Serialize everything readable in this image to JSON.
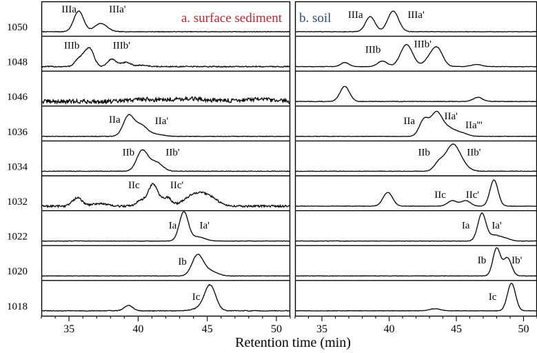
{
  "chart_data": {
    "type": "line",
    "xlabel": "Retention time (min)",
    "row_labels": [
      "1050",
      "1048",
      "1046",
      "1036",
      "1034",
      "1032",
      "1022",
      "1020",
      "1018"
    ],
    "panels": [
      {
        "id": "a",
        "title": "a. surface sediment",
        "title_color": "#c0262d",
        "xlim": [
          33,
          51
        ],
        "xticks": [
          35,
          40,
          45,
          50
        ],
        "traces": [
          {
            "row": "1050",
            "peaks": [
              [
                35.7,
                30,
                0.35
              ],
              [
                37.3,
                12,
                0.45
              ]
            ],
            "noise": 0.4,
            "labels": [
              {
                "text": "IIIa",
                "x": 35.0,
                "h": 28
              },
              {
                "text": "IIIa'",
                "x": 38.5,
                "h": 28
              }
            ]
          },
          {
            "row": "1048",
            "peaks": [
              [
                35.6,
                8,
                0.25
              ],
              [
                36.0,
                10,
                0.25
              ],
              [
                36.5,
                26,
                0.3
              ],
              [
                38.1,
                11,
                0.3
              ],
              [
                39.1,
                6,
                0.35
              ],
              [
                40.3,
                2,
                0.4
              ]
            ],
            "noise": 0.8,
            "labels": [
              {
                "text": "IIIb",
                "x": 35.2,
                "h": 26
              },
              {
                "text": "IIIb'",
                "x": 38.8,
                "h": 26
              }
            ]
          },
          {
            "row": "1046",
            "peaks": [
              [
                40.2,
                3,
                0.8
              ],
              [
                43.5,
                4,
                1.5
              ],
              [
                48.5,
                3,
                1.2
              ]
            ],
            "noise": 3.0,
            "labels": []
          },
          {
            "row": "1036",
            "peaks": [
              [
                39.3,
                29,
                0.38
              ],
              [
                40.2,
                16,
                0.45
              ],
              [
                41.3,
                3,
                0.5
              ]
            ],
            "noise": 0.4,
            "labels": [
              {
                "text": "IIa",
                "x": 38.3,
                "h": 20
              },
              {
                "text": "IIa'",
                "x": 41.7,
                "h": 18
              }
            ]
          },
          {
            "row": "1034",
            "peaks": [
              [
                40.3,
                30,
                0.4
              ],
              [
                41.3,
                13,
                0.45
              ]
            ],
            "noise": 0.4,
            "labels": [
              {
                "text": "IIb",
                "x": 39.3,
                "h": 23
              },
              {
                "text": "IIb'",
                "x": 42.5,
                "h": 23
              }
            ]
          },
          {
            "row": "1032",
            "peaks": [
              [
                35.6,
                12,
                0.35
              ],
              [
                37.2,
                4,
                0.5
              ],
              [
                40.2,
                8,
                0.35
              ],
              [
                41.1,
                32,
                0.35
              ],
              [
                42.1,
                12,
                0.3
              ],
              [
                43.9,
                11,
                0.7
              ],
              [
                44.7,
                11,
                0.7
              ],
              [
                45.4,
                5,
                0.6
              ]
            ],
            "noise": 1.5,
            "labels": [
              {
                "text": "IIc",
                "x": 39.7,
                "h": 26
              },
              {
                "text": "IIc'",
                "x": 42.8,
                "h": 26
              }
            ]
          },
          {
            "row": "1022",
            "peaks": [
              [
                43.3,
                42,
                0.32
              ],
              [
                44.3,
                6,
                0.5
              ]
            ],
            "noise": 0.3,
            "labels": [
              {
                "text": "Ia",
                "x": 42.5,
                "h": 18
              },
              {
                "text": "Ia'",
                "x": 44.8,
                "h": 18
              }
            ]
          },
          {
            "row": "1020",
            "peaks": [
              [
                44.3,
                30,
                0.4
              ],
              [
                45.2,
                7,
                0.5
              ]
            ],
            "noise": 0.3,
            "labels": [
              {
                "text": "Ib",
                "x": 43.2,
                "h": 16
              }
            ]
          },
          {
            "row": "1018",
            "peaks": [
              [
                39.3,
                8,
                0.3
              ],
              [
                44.4,
                3,
                0.5
              ],
              [
                45.2,
                37,
                0.4
              ]
            ],
            "noise": 0.5,
            "labels": [
              {
                "text": "Ic",
                "x": 44.2,
                "h": 16
              }
            ]
          }
        ]
      },
      {
        "id": "b",
        "title": "b. soil",
        "title_color": "#2b4a8c",
        "xlim": [
          33,
          51
        ],
        "xticks": [
          35,
          40,
          45,
          50
        ],
        "traces": [
          {
            "row": "1050",
            "peaks": [
              [
                38.6,
                22,
                0.35
              ],
              [
                40.3,
                30,
                0.4
              ]
            ],
            "noise": 0.3,
            "labels": [
              {
                "text": "IIIa",
                "x": 37.5,
                "h": 20
              },
              {
                "text": "IIIa'",
                "x": 42.0,
                "h": 20
              }
            ]
          },
          {
            "row": "1048",
            "peaks": [
              [
                36.7,
                6,
                0.3
              ],
              [
                39.5,
                8,
                0.35
              ],
              [
                41.3,
                32,
                0.45
              ],
              [
                43.0,
                10,
                0.4
              ],
              [
                43.6,
                25,
                0.4
              ],
              [
                46.5,
                3,
                0.4
              ]
            ],
            "noise": 0.3,
            "labels": [
              {
                "text": "IIIb",
                "x": 38.8,
                "h": 20
              },
              {
                "text": "IIIb'",
                "x": 42.5,
                "h": 28
              }
            ]
          },
          {
            "row": "1046",
            "peaks": [
              [
                36.7,
                22,
                0.35
              ],
              [
                46.6,
                6,
                0.35
              ]
            ],
            "noise": 0.4,
            "labels": []
          },
          {
            "row": "1036",
            "peaks": [
              [
                42.6,
                24,
                0.35
              ],
              [
                43.5,
                32,
                0.4
              ],
              [
                44.3,
                12,
                0.5
              ],
              [
                45.3,
                5,
                0.5
              ]
            ],
            "noise": 0.3,
            "labels": [
              {
                "text": "IIa",
                "x": 41.5,
                "h": 18
              },
              {
                "text": "IIa'",
                "x": 44.6,
                "h": 25
              },
              {
                "text": "IIa'''",
                "x": 46.3,
                "h": 12
              }
            ]
          },
          {
            "row": "1034",
            "peaks": [
              [
                43.7,
                12,
                0.35
              ],
              [
                44.7,
                36,
                0.5
              ],
              [
                45.4,
                8,
                0.5
              ]
            ],
            "noise": 0.3,
            "labels": [
              {
                "text": "IIb",
                "x": 42.6,
                "h": 23
              },
              {
                "text": "IIb'",
                "x": 46.3,
                "h": 23
              }
            ]
          },
          {
            "row": "1032",
            "peaks": [
              [
                39.9,
                20,
                0.35
              ],
              [
                44.7,
                8,
                0.35
              ],
              [
                45.7,
                8,
                0.35
              ],
              [
                47.8,
                38,
                0.3
              ]
            ],
            "noise": 0.3,
            "labels": [
              {
                "text": "IIc",
                "x": 43.8,
                "h": 12
              },
              {
                "text": "IIc'",
                "x": 46.2,
                "h": 12
              }
            ]
          },
          {
            "row": "1022",
            "peaks": [
              [
                46.9,
                40,
                0.3
              ],
              [
                47.8,
                8,
                0.4
              ],
              [
                48.6,
                4,
                0.4
              ]
            ],
            "noise": 0.3,
            "labels": [
              {
                "text": "Ia",
                "x": 45.7,
                "h": 18
              },
              {
                "text": "Ia'",
                "x": 48.0,
                "h": 18
              }
            ]
          },
          {
            "row": "1020",
            "peaks": [
              [
                48.0,
                40,
                0.28
              ],
              [
                48.8,
                26,
                0.3
              ]
            ],
            "noise": 0.3,
            "labels": [
              {
                "text": "Ib",
                "x": 46.9,
                "h": 18
              },
              {
                "text": "Ib'",
                "x": 49.5,
                "h": 18
              }
            ]
          },
          {
            "row": "1018",
            "peaks": [
              [
                43.4,
                3,
                0.4
              ],
              [
                49.1,
                40,
                0.3
              ]
            ],
            "noise": 0.3,
            "labels": [
              {
                "text": "Ic",
                "x": 47.7,
                "h": 16
              }
            ]
          }
        ]
      }
    ]
  }
}
